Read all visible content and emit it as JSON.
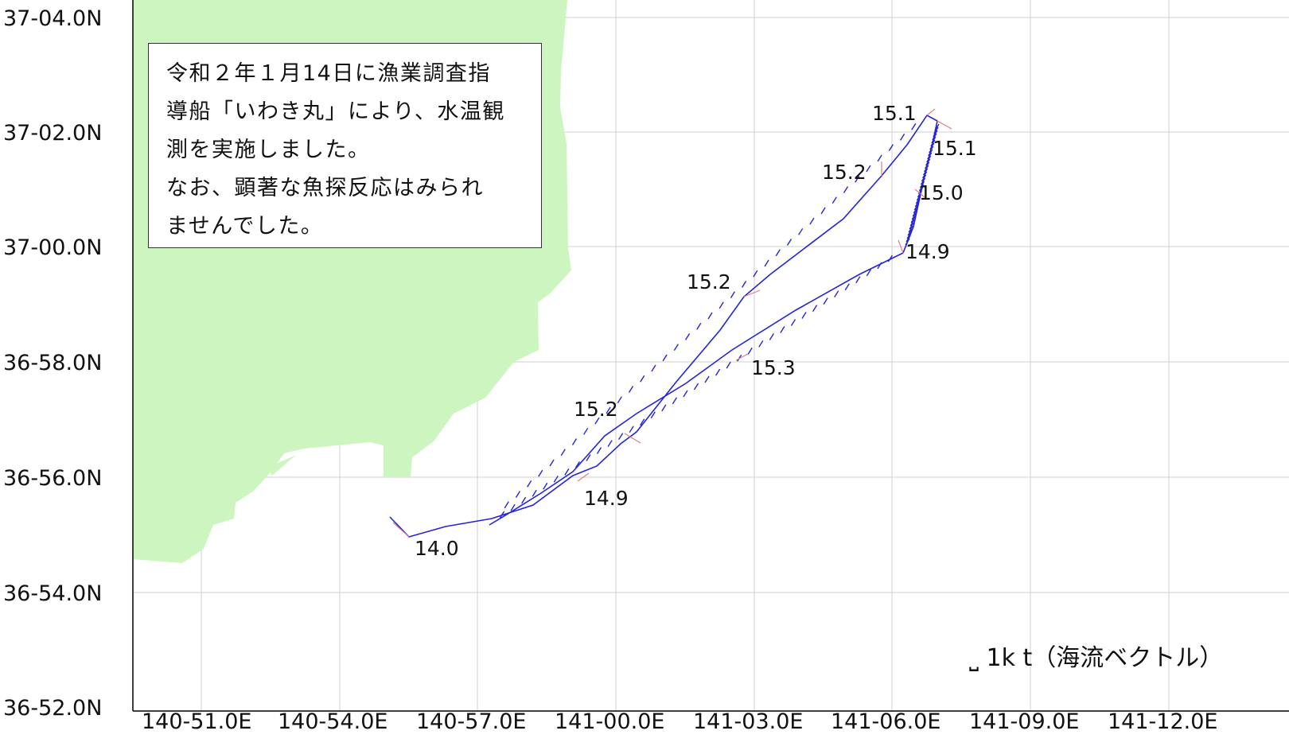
{
  "map": {
    "latitude_labels": [
      "37-04.0N",
      "37-02.0N",
      "37-00.0N",
      "36-58.0N",
      "36-56.0N",
      "36-54.0N",
      "36-52.0N"
    ],
    "longitude_labels": [
      "140-51.0E",
      "140-54.0E",
      "140-57.0E",
      "141-00.0E",
      "141-03.0E",
      "141-06.0E",
      "141-09.0E",
      "141-12.0E"
    ],
    "colors": {
      "land": "#cdf5c0",
      "track": "#2424d8",
      "grid": "#cfcfcf",
      "marker": "#e37d7d"
    }
  },
  "note": {
    "lines": [
      "令和２年１月14日に漁業調査指",
      "導船「いわき丸」により、水温観",
      "測を実施しました。",
      "なお、顕著な魚探反応はみられ",
      "ませんでした。"
    ]
  },
  "temperatures": [
    "15.1",
    "15.1",
    "15.2",
    "15.0",
    "14.9",
    "15.2",
    "15.3",
    "15.2",
    "14.9",
    "14.0"
  ],
  "legend": {
    "label": "⎵ 1k t（海流ベクトル）"
  }
}
